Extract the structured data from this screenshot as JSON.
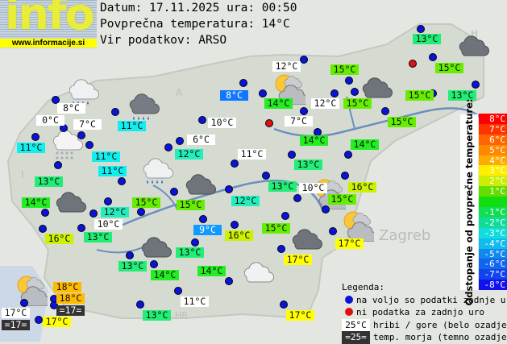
{
  "header": {
    "logo_text": "info",
    "logo_url": "www.informacije.si",
    "date_line": "Datum: 17.11.2025 ura: 00:50",
    "avg_line": "Povprečna temperatura: 14°C",
    "source_line": "Vir podatkov: ARSO"
  },
  "colors": {
    "c18": "#ffbb00",
    "c17": "#ffff00",
    "c16": "#ccf200",
    "c15": "#66ee00",
    "c14": "#22ee22",
    "c13": "#22ee77",
    "c12": "#22eebb",
    "c11": "#11eeee",
    "c9": "#1199ff",
    "c8": "#1177ff",
    "w": "#ffffff",
    "sea": "#333333",
    "dot_ok": "#0a14d8",
    "dot_missing": "#dd1111"
  },
  "stations": [
    {
      "t": "13°C",
      "c": "c13"
    },
    {
      "t": "15°C",
      "c": "c15"
    },
    {
      "t": "13°C",
      "c": "c13"
    },
    {
      "t": "15°C",
      "c": "c15"
    },
    {
      "t": "15°C",
      "c": "c15"
    },
    {
      "t": "12°C",
      "c": "w"
    },
    {
      "t": "15°C",
      "c": "c15"
    },
    {
      "t": "14°C",
      "c": "c14"
    },
    {
      "t": "12°C",
      "c": "w"
    },
    {
      "t": "15°C",
      "c": "c15"
    },
    {
      "t": "7°C",
      "c": "w"
    },
    {
      "t": "8°C",
      "c": "c8"
    },
    {
      "t": "14°C",
      "c": "c14"
    },
    {
      "t": "14°C",
      "c": "c14"
    },
    {
      "t": "13°C",
      "c": "c13"
    },
    {
      "t": "11°C",
      "c": "w"
    },
    {
      "t": "13°C",
      "c": "c13"
    },
    {
      "t": "10°C",
      "c": "w"
    },
    {
      "t": "16°C",
      "c": "c16"
    },
    {
      "t": "15°C",
      "c": "c15"
    },
    {
      "t": "15°C",
      "c": "c15"
    },
    {
      "t": "17°C",
      "c": "c17"
    },
    {
      "t": "17°C",
      "c": "c17"
    },
    {
      "t": "8°C",
      "c": "w"
    },
    {
      "t": "11°C",
      "c": "c11"
    },
    {
      "t": "0°C",
      "c": "w"
    },
    {
      "t": "7°C",
      "c": "w"
    },
    {
      "t": "11°C",
      "c": "c11"
    },
    {
      "t": "11°C",
      "c": "c11"
    },
    {
      "t": "13°C",
      "c": "c13"
    },
    {
      "t": "11°C",
      "c": "c11"
    },
    {
      "t": "10°C",
      "c": "w"
    },
    {
      "t": "6°C",
      "c": "w"
    },
    {
      "t": "12°C",
      "c": "c12"
    },
    {
      "t": "15°C",
      "c": "c15"
    },
    {
      "t": "12°C",
      "c": "c12"
    },
    {
      "t": "14°C",
      "c": "c14"
    },
    {
      "t": "12°C",
      "c": "c12"
    },
    {
      "t": "10°C",
      "c": "w"
    },
    {
      "t": "15°C",
      "c": "c15"
    },
    {
      "t": "16°C",
      "c": "c16"
    },
    {
      "t": "13°C",
      "c": "c13"
    },
    {
      "t": "9°C",
      "c": "c9"
    },
    {
      "t": "16°C",
      "c": "c16"
    },
    {
      "t": "13°C",
      "c": "c13"
    },
    {
      "t": "13°C",
      "c": "c13"
    },
    {
      "t": "14°C",
      "c": "c14"
    },
    {
      "t": "14°C",
      "c": "c14"
    },
    {
      "t": "11°C",
      "c": "w"
    },
    {
      "t": "13°C",
      "c": "c13"
    },
    {
      "t": "17°C",
      "c": "c17"
    },
    {
      "t": "18°C",
      "c": "c18"
    },
    {
      "t": "18°C",
      "c": "c18"
    },
    {
      "t": "=17=",
      "c": "sea"
    },
    {
      "t": "17°C",
      "c": "w"
    },
    {
      "t": "=17=",
      "c": "sea"
    },
    {
      "t": "17°C",
      "c": "c17"
    }
  ],
  "dot_status": [
    "ok",
    "ok",
    "missing",
    "ok",
    "ok",
    "ok",
    "ok",
    "ok",
    "ok",
    "ok",
    "ok",
    "missing",
    "ok",
    "ok",
    "ok",
    "ok",
    "ok",
    "ok",
    "ok",
    "ok",
    "ok",
    "ok",
    "ok",
    "ok",
    "ok",
    "ok",
    "ok",
    "ok",
    "ok",
    "ok",
    "ok",
    "ok",
    "ok",
    "ok",
    "ok",
    "ok",
    "ok",
    "ok",
    "ok",
    "ok",
    "ok",
    "ok",
    "ok",
    "ok",
    "ok",
    "ok",
    "ok",
    "ok",
    "ok",
    "ok",
    "ok",
    "ok",
    "ok",
    "ok",
    "ok",
    "ok",
    "ok"
  ],
  "weather_icons": [
    "cloud-rain-light",
    "cloud-rain-dark",
    "cloud-snow",
    "cloud-rain-light",
    "cloud-dark",
    "cloud-dark",
    "cloud-dark",
    "cloud-dark",
    "cloud-dark",
    "cloud-dark",
    "sun-cloud",
    "sun-cloud",
    "sun-cloud",
    "sun-cloud",
    "cloud-outline"
  ],
  "map_labels": [
    "Zagreb",
    "HR",
    "A",
    "H",
    "I"
  ],
  "colorbar": {
    "title": "Odstopanje od povprečne temperature:",
    "steps": [
      {
        "label": "8°C",
        "color": "#ff0000"
      },
      {
        "label": "7°C",
        "color": "#ff3300"
      },
      {
        "label": "6°C",
        "color": "#ff6600"
      },
      {
        "label": "5°C",
        "color": "#ff8800"
      },
      {
        "label": "4°C",
        "color": "#ffaa00"
      },
      {
        "label": "3°C",
        "color": "#ffee00"
      },
      {
        "label": "2°C",
        "color": "#ccee00"
      },
      {
        "label": "1°C",
        "color": "#66dd00"
      },
      {
        "label": "",
        "color": "#11dd11"
      },
      {
        "label": "-1°C",
        "color": "#11dd55"
      },
      {
        "label": "-2°C",
        "color": "#11dd99"
      },
      {
        "label": "-3°C",
        "color": "#11dddd"
      },
      {
        "label": "-4°C",
        "color": "#11bbee"
      },
      {
        "label": "-5°C",
        "color": "#1188ee"
      },
      {
        "label": "-6°C",
        "color": "#1166ee"
      },
      {
        "label": "-7°C",
        "color": "#1144ee"
      },
      {
        "label": "-8°C",
        "color": "#1111ee"
      }
    ]
  },
  "legend": {
    "title": "Legenda:",
    "ok": "na voljo so podatki zadnje ure",
    "missing": "ni podatka za zadnjo uro",
    "hill_sample": "25°C",
    "hill_text": "hribi / gore (belo ozadje)",
    "sea_sample": "=25=",
    "sea_text": "temp. morja (temno ozadje)"
  }
}
